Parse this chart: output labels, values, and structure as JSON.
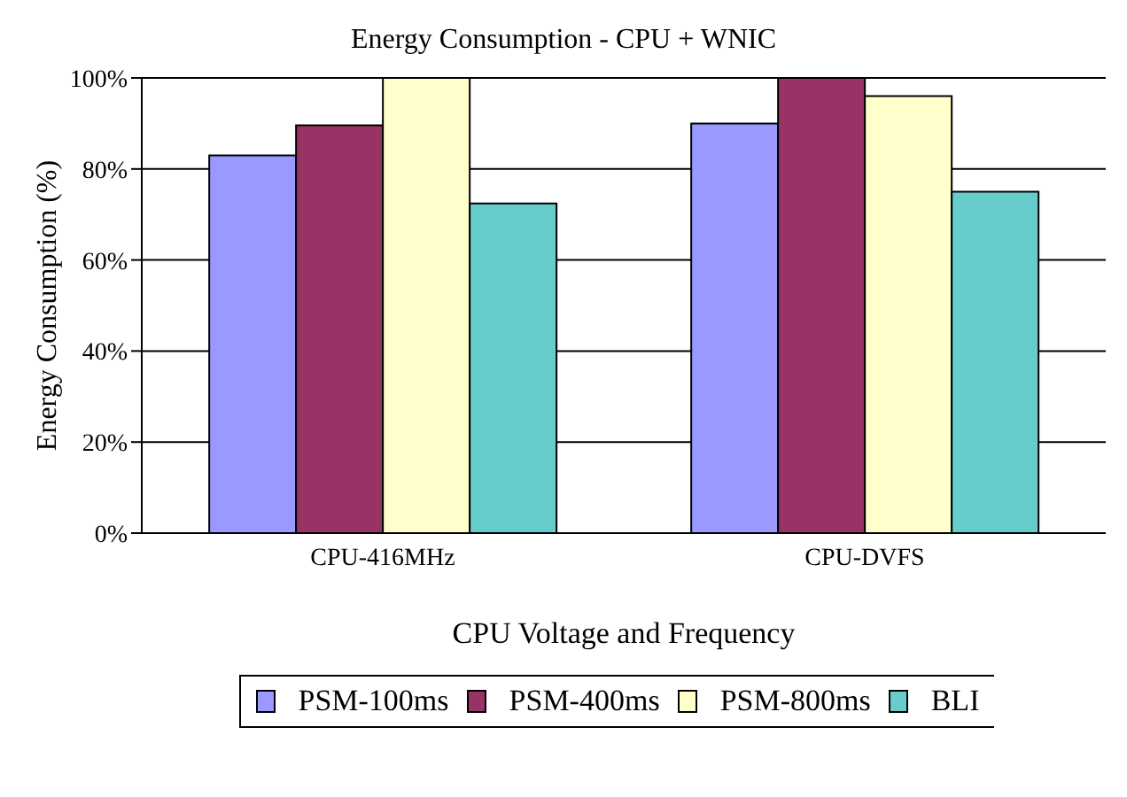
{
  "chart_data": {
    "type": "bar",
    "title": "Energy Consumption - CPU + WNIC",
    "xlabel": "CPU Voltage and Frequency",
    "ylabel": "Energy Consumption (%)",
    "categories": [
      "CPU-416MHz",
      "CPU-DVFS"
    ],
    "series": [
      {
        "name": "PSM-100ms",
        "color": "#9999ff",
        "values": [
          83,
          90
        ]
      },
      {
        "name": "PSM-400ms",
        "color": "#993366",
        "values": [
          89.6,
          100
        ]
      },
      {
        "name": "PSM-800ms",
        "color": "#ffffcc",
        "values": [
          100,
          96
        ]
      },
      {
        "name": "BLI",
        "color": "#66cccc",
        "values": [
          72.4,
          75
        ]
      }
    ],
    "ylim": [
      0,
      100
    ],
    "yticks": [
      {
        "value": 0,
        "label": "0%"
      },
      {
        "value": 20,
        "label": "20%"
      },
      {
        "value": 40,
        "label": "40%"
      },
      {
        "value": 60,
        "label": "60%"
      },
      {
        "value": 80,
        "label": "80%"
      },
      {
        "value": 100,
        "label": "100%"
      }
    ],
    "grid": "y",
    "legend": "bottom"
  }
}
